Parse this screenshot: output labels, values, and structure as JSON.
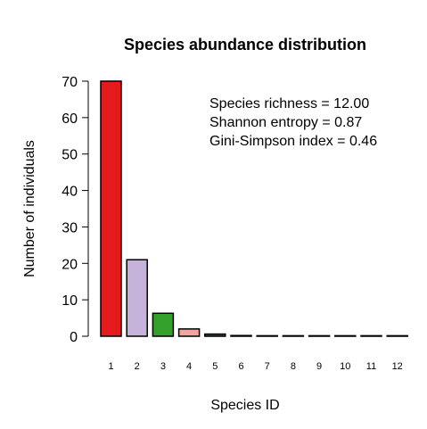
{
  "chart_data": {
    "type": "bar",
    "title": "Species abundance distribution",
    "xlabel": "Species ID",
    "ylabel": "Number of individuals",
    "categories": [
      "1",
      "2",
      "3",
      "4",
      "5",
      "6",
      "7",
      "8",
      "9",
      "10",
      "11",
      "12"
    ],
    "values": [
      70,
      21,
      6.3,
      2,
      0.6,
      0.2,
      0.05,
      0.02,
      0.01,
      0.005,
      0.002,
      0.001
    ],
    "colors": [
      "#e41a1c",
      "#c6b2db",
      "#33a02c",
      "#f4a3a3",
      "#4d4d4d",
      "#4d4d4d",
      "#4d4d4d",
      "#4d4d4d",
      "#4d4d4d",
      "#4d4d4d",
      "#4d4d4d",
      "#4d4d4d"
    ],
    "ylim": [
      0,
      70
    ],
    "yticks": [
      0,
      10,
      20,
      30,
      40,
      50,
      60,
      70
    ],
    "grid": false,
    "legend": "none",
    "annotations": [
      "Species richness = 12.00",
      "Shannon entropy = 0.87",
      "Gini-Simpson index = 0.46"
    ]
  }
}
